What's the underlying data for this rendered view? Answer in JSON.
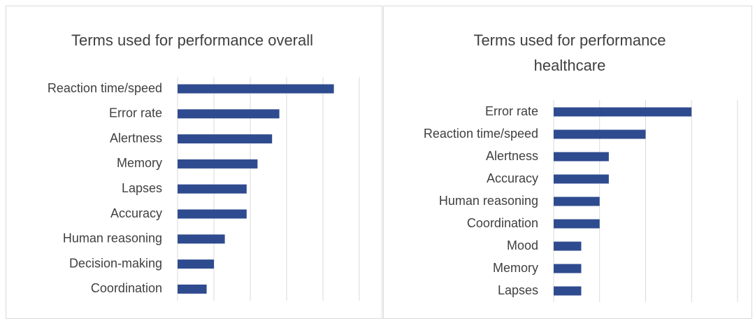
{
  "chart_data": [
    {
      "type": "barh",
      "title": "Terms used for performance overall",
      "categories": [
        "Reaction time/speed",
        "Error rate",
        "Alertness",
        "Memory",
        "Lapses",
        "Accuracy",
        "Human reasoning",
        "Decision-making",
        "Coordination"
      ],
      "values": [
        43,
        28,
        26,
        22,
        19,
        19,
        13,
        10,
        8
      ],
      "color": "#2f4b8f",
      "xlim": [
        0,
        50
      ],
      "xticks": [
        0,
        10,
        20,
        30,
        40,
        50
      ],
      "grid": true
    },
    {
      "type": "barh",
      "title": "Terms used for performance healthcare",
      "categories": [
        "Error rate",
        "Reaction time/speed",
        "Alertness",
        "Accuracy",
        "Human reasoning",
        "Coordination",
        "Mood",
        "Memory",
        "Lapses"
      ],
      "values": [
        15,
        10,
        6,
        6,
        5,
        5,
        3,
        3,
        3
      ],
      "color": "#2f4b8f",
      "xlim": [
        0,
        20
      ],
      "xticks": [
        0,
        5,
        10,
        15,
        20
      ],
      "grid": true
    }
  ]
}
